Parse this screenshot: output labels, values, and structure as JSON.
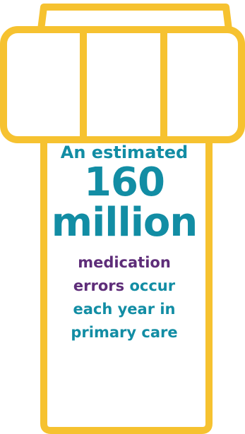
{
  "colors": {
    "bottle_outline": "#F6C230",
    "teal": "#128DA4",
    "purple": "#5E2D79",
    "background": "#FFFFFF"
  },
  "headline": {
    "intro": "An estimated",
    "number": "160",
    "unit": "million"
  },
  "description": {
    "highlight_1": "medication",
    "highlight_2": "errors",
    "rest_1": " occur",
    "rest_2": "each year in",
    "rest_3": "primary care"
  }
}
